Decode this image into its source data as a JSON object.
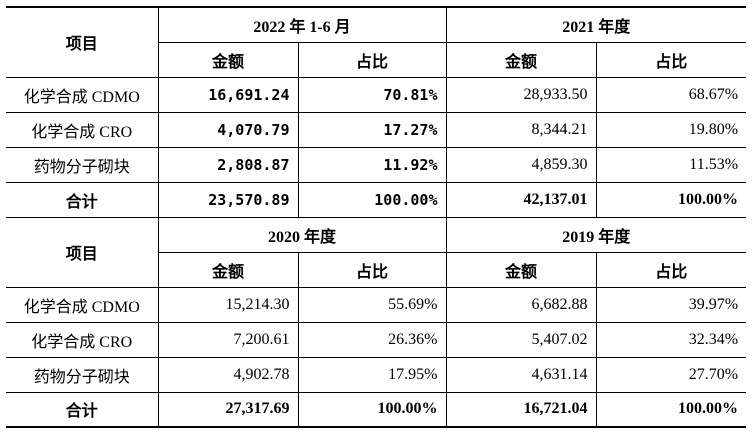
{
  "tables": [
    {
      "item_header": "项目",
      "groups": [
        {
          "period": "2022 年 1-6 月",
          "amount_header": "金额",
          "ratio_header": "占比"
        },
        {
          "period": "2021 年度",
          "amount_header": "金额",
          "ratio_header": "占比"
        }
      ],
      "rows": [
        {
          "item": "化学合成 CDMO",
          "a1": "16,691.24",
          "r1": "70.81%",
          "a2": "28,933.50",
          "r2": "68.67%"
        },
        {
          "item": "化学合成 CRO",
          "a1": "4,070.79",
          "r1": "17.27%",
          "a2": "8,344.21",
          "r2": "19.80%"
        },
        {
          "item": "药物分子砌块",
          "a1": "2,808.87",
          "r1": "11.92%",
          "a2": "4,859.30",
          "r2": "11.53%"
        }
      ],
      "total": {
        "item": "合计",
        "a1": "23,570.89",
        "r1": "100.00%",
        "a2": "42,137.01",
        "r2": "100.00%"
      }
    },
    {
      "item_header": "项目",
      "groups": [
        {
          "period": "2020 年度",
          "amount_header": "金额",
          "ratio_header": "占比"
        },
        {
          "period": "2019 年度",
          "amount_header": "金额",
          "ratio_header": "占比"
        }
      ],
      "rows": [
        {
          "item": "化学合成 CDMO",
          "a1": "15,214.30",
          "r1": "55.69%",
          "a2": "6,682.88",
          "r2": "39.97%"
        },
        {
          "item": "化学合成 CRO",
          "a1": "7,200.61",
          "r1": "26.36%",
          "a2": "5,407.02",
          "r2": "32.34%"
        },
        {
          "item": "药物分子砌块",
          "a1": "4,902.78",
          "r1": "17.95%",
          "a2": "4,631.14",
          "r2": "27.70%"
        }
      ],
      "total": {
        "item": "合计",
        "a1": "27,317.69",
        "r1": "100.00%",
        "a2": "16,721.04",
        "r2": "100.00%"
      }
    }
  ]
}
